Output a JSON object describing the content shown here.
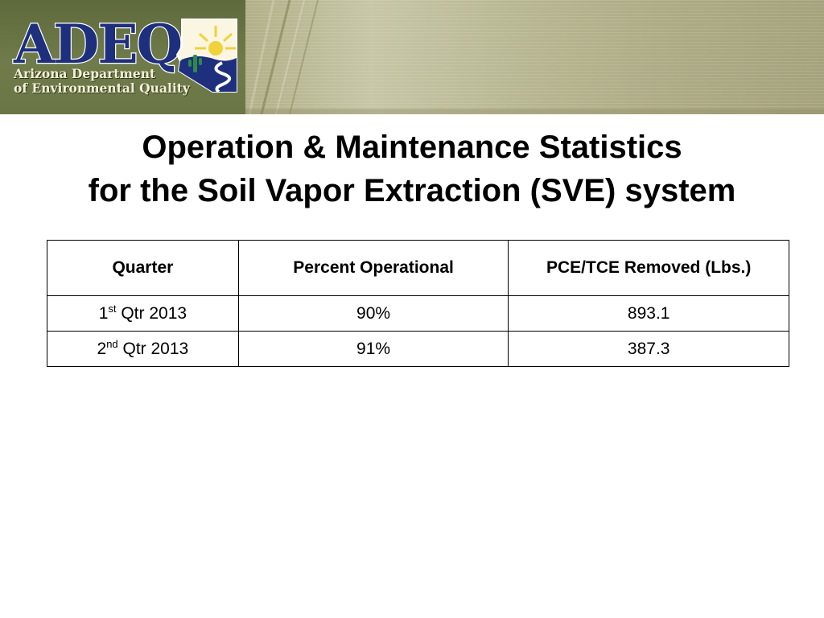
{
  "logo": {
    "wordmark": "ADEQ",
    "line1": "Arizona Department",
    "line2": "of Environmental Quality"
  },
  "title": {
    "line1": "Operation & Maintenance Statistics",
    "line2": "for the Soil Vapor Extraction (SVE) system"
  },
  "table": {
    "headers": {
      "quarter": "Quarter",
      "percent": "Percent Operational",
      "removed": "PCE/TCE Removed (Lbs.)"
    },
    "rows": [
      {
        "num": "1",
        "suffix": "st",
        "qtr": " Qtr 2013",
        "percent": "90%",
        "removed": "893.1"
      },
      {
        "num": "2",
        "suffix": "nd",
        "qtr": " Qtr 2013",
        "percent": "91%",
        "removed": "387.3"
      }
    ]
  },
  "colors": {
    "banner": "#aeac86",
    "logo_panel": "#6a7645",
    "logo_blue": "#1d2f7d",
    "sun": "#f1d23a",
    "cactus": "#2f8a4a"
  },
  "icons": [
    "arizona-map-icon",
    "sun-icon",
    "cactus-icon",
    "river-icon"
  ]
}
